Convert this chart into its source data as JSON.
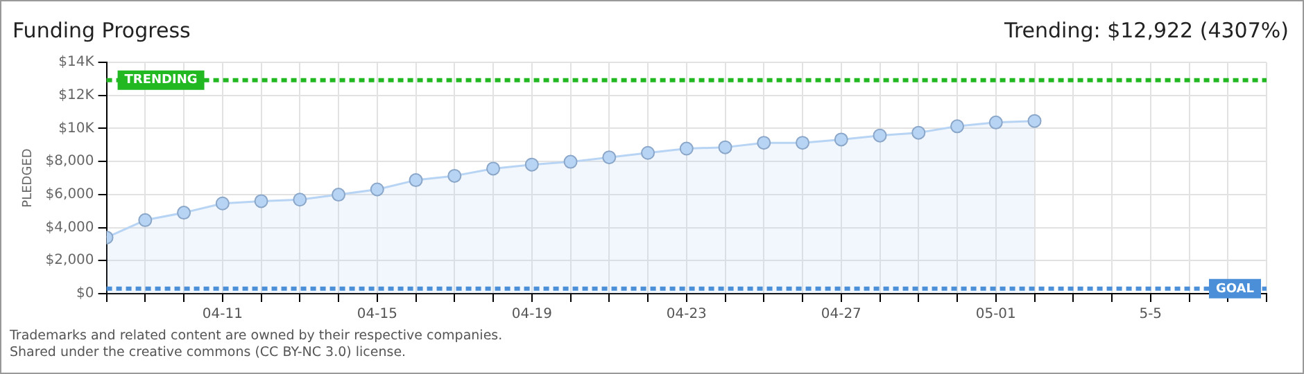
{
  "chart_data": {
    "type": "area",
    "title": "Funding Progress",
    "subtitle": "Trending: $12,922 (4307%)",
    "ylabel": "PLEDGED",
    "x": [
      "--04-08",
      "--04-09",
      "--04-10",
      "--04-11",
      "--04-12",
      "--04-13",
      "--04-14",
      "--04-15",
      "--04-16",
      "--04-17",
      "--04-18",
      "--04-19",
      "--04-20",
      "--04-21",
      "--04-22",
      "--04-23",
      "--04-24",
      "--04-25",
      "--04-26",
      "--04-27",
      "--04-28",
      "--04-29",
      "--04-30",
      "--05-01",
      "--05-02"
    ],
    "series": [
      {
        "color": "#b8d4f4",
        "values": [
          3400,
          4450,
          4900,
          5460,
          5600,
          5690,
          5990,
          6310,
          6870,
          7130,
          7570,
          7810,
          7980,
          8250,
          8520,
          8780,
          8860,
          9130,
          9130,
          9330,
          9570,
          9740,
          10130,
          10360,
          10450
        ]
      }
    ],
    "xlim": [
      "--04-08",
      "--05-08"
    ],
    "xticks": [
      {
        "value": "--04-08",
        "label": null
      },
      {
        "value": "--04-09",
        "label": null
      },
      {
        "value": "--04-10",
        "label": null
      },
      {
        "value": "--04-11",
        "label": "04-11"
      },
      {
        "value": "--04-12",
        "label": null
      },
      {
        "value": "--04-13",
        "label": null
      },
      {
        "value": "--04-14",
        "label": null
      },
      {
        "value": "--04-15",
        "label": "04-15"
      },
      {
        "value": "--04-16",
        "label": null
      },
      {
        "value": "--04-17",
        "label": null
      },
      {
        "value": "--04-18",
        "label": null
      },
      {
        "value": "--04-19",
        "label": "04-19"
      },
      {
        "value": "--04-20",
        "label": null
      },
      {
        "value": "--04-21",
        "label": null
      },
      {
        "value": "--04-22",
        "label": null
      },
      {
        "value": "--04-23",
        "label": "04-23"
      },
      {
        "value": "--04-24",
        "label": null
      },
      {
        "value": "--04-25",
        "label": null
      },
      {
        "value": "--04-26",
        "label": null
      },
      {
        "value": "--04-27",
        "label": "04-27"
      },
      {
        "value": "--04-28",
        "label": null
      },
      {
        "value": "--04-29",
        "label": null
      },
      {
        "value": "--04-30",
        "label": null
      },
      {
        "value": "--05-01",
        "label": "05-01"
      },
      {
        "value": "--05-02",
        "label": null
      },
      {
        "value": "--05-03",
        "label": null
      },
      {
        "value": "--05-04",
        "label": null
      },
      {
        "value": "--05-05",
        "label": "5-5"
      },
      {
        "value": "--05-06",
        "label": null
      },
      {
        "value": "--05-07",
        "label": null
      },
      {
        "value": "--05-08",
        "label": null
      }
    ],
    "ylim": [
      0,
      14000
    ],
    "yticks": [
      {
        "value": 0,
        "label": "$0"
      },
      {
        "value": 2000,
        "label": "$2,000"
      },
      {
        "value": 4000,
        "label": "$4,000"
      },
      {
        "value": 6000,
        "label": "$6,000"
      },
      {
        "value": 8000,
        "label": "$8,000"
      },
      {
        "value": 10000,
        "label": "$10K"
      },
      {
        "value": 12000,
        "label": "$12K"
      },
      {
        "value": 14000,
        "label": "$14K"
      }
    ],
    "ref_lines": [
      {
        "axis": "y",
        "value": 12922,
        "label": "TRENDING",
        "color": "#22b822",
        "line_style": "dashed"
      },
      {
        "axis": "y",
        "value": 300,
        "label": "GOAL",
        "color": "#4a8fd8",
        "line_style": "dashed"
      }
    ],
    "grid": true,
    "marker": "circle",
    "legend": false,
    "annotations": [
      "Trademarks and related content are owned by their respective companies.",
      "Shared under the creative commons (CC BY-NC 3.0) license."
    ]
  }
}
